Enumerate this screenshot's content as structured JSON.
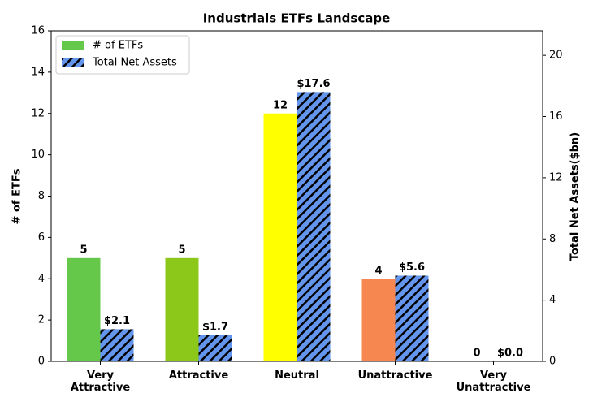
{
  "chart_data": {
    "type": "bar",
    "title": "Industrials ETFs Landscape",
    "categories": [
      "Very\nAttractive",
      "Attractive",
      "Neutral",
      "Unattractive",
      "Very\nUnattractive"
    ],
    "series": [
      {
        "name": "# of ETFs",
        "color": "#66c84b",
        "colors": [
          "#66c84b",
          "#8cc81a",
          "#ffff00",
          "#f78750",
          "#d0d0d0"
        ],
        "values": [
          5,
          5,
          12,
          4,
          0
        ]
      },
      {
        "name": "Total Net Assets",
        "color": "#6495ed",
        "hatch": true,
        "axis": "y2",
        "values": [
          2.1,
          1.7,
          17.6,
          5.6,
          0.0
        ],
        "value_labels": [
          "$2.1",
          "$1.7",
          "$17.6",
          "$5.6",
          "$0.0"
        ]
      }
    ],
    "ylabel": "# of ETFs",
    "y2label": "Total Net Assets($bn)",
    "ylim": [
      0,
      16
    ],
    "yticks": [
      0,
      2,
      4,
      6,
      8,
      10,
      12,
      14,
      16
    ],
    "y2lim": [
      0,
      21.6
    ],
    "y2ticks": [
      0,
      4,
      8,
      12,
      16,
      20
    ],
    "legend": "upper left",
    "grid": false
  }
}
